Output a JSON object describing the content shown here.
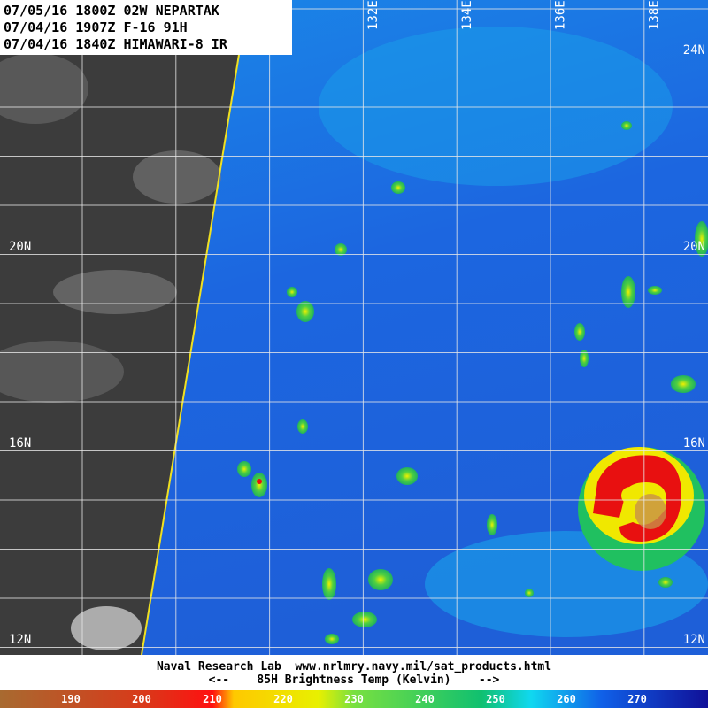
{
  "header": {
    "lines": [
      "07/05/16 1800Z 02W NEPARTAK",
      "07/04/16 1907Z F-16 91H",
      "07/04/16 1840Z HIMAWARI-8 IR"
    ]
  },
  "map": {
    "lon_labels": [
      "132E",
      "134E",
      "136E",
      "138E"
    ],
    "lat_labels_right": [
      "24N",
      "20N",
      "16N",
      "12N"
    ],
    "lat_labels_left": [
      "20N",
      "16N",
      "12N"
    ]
  },
  "footer": {
    "credit": "Naval Research Lab  www.nrlmry.navy.mil/sat_products.html",
    "legend_title": "<--    85H Brightness Temp (Kelvin)    -->"
  },
  "colorbar": {
    "labels": [
      "190",
      "200",
      "210",
      "220",
      "230",
      "240",
      "250",
      "260",
      "270"
    ]
  }
}
